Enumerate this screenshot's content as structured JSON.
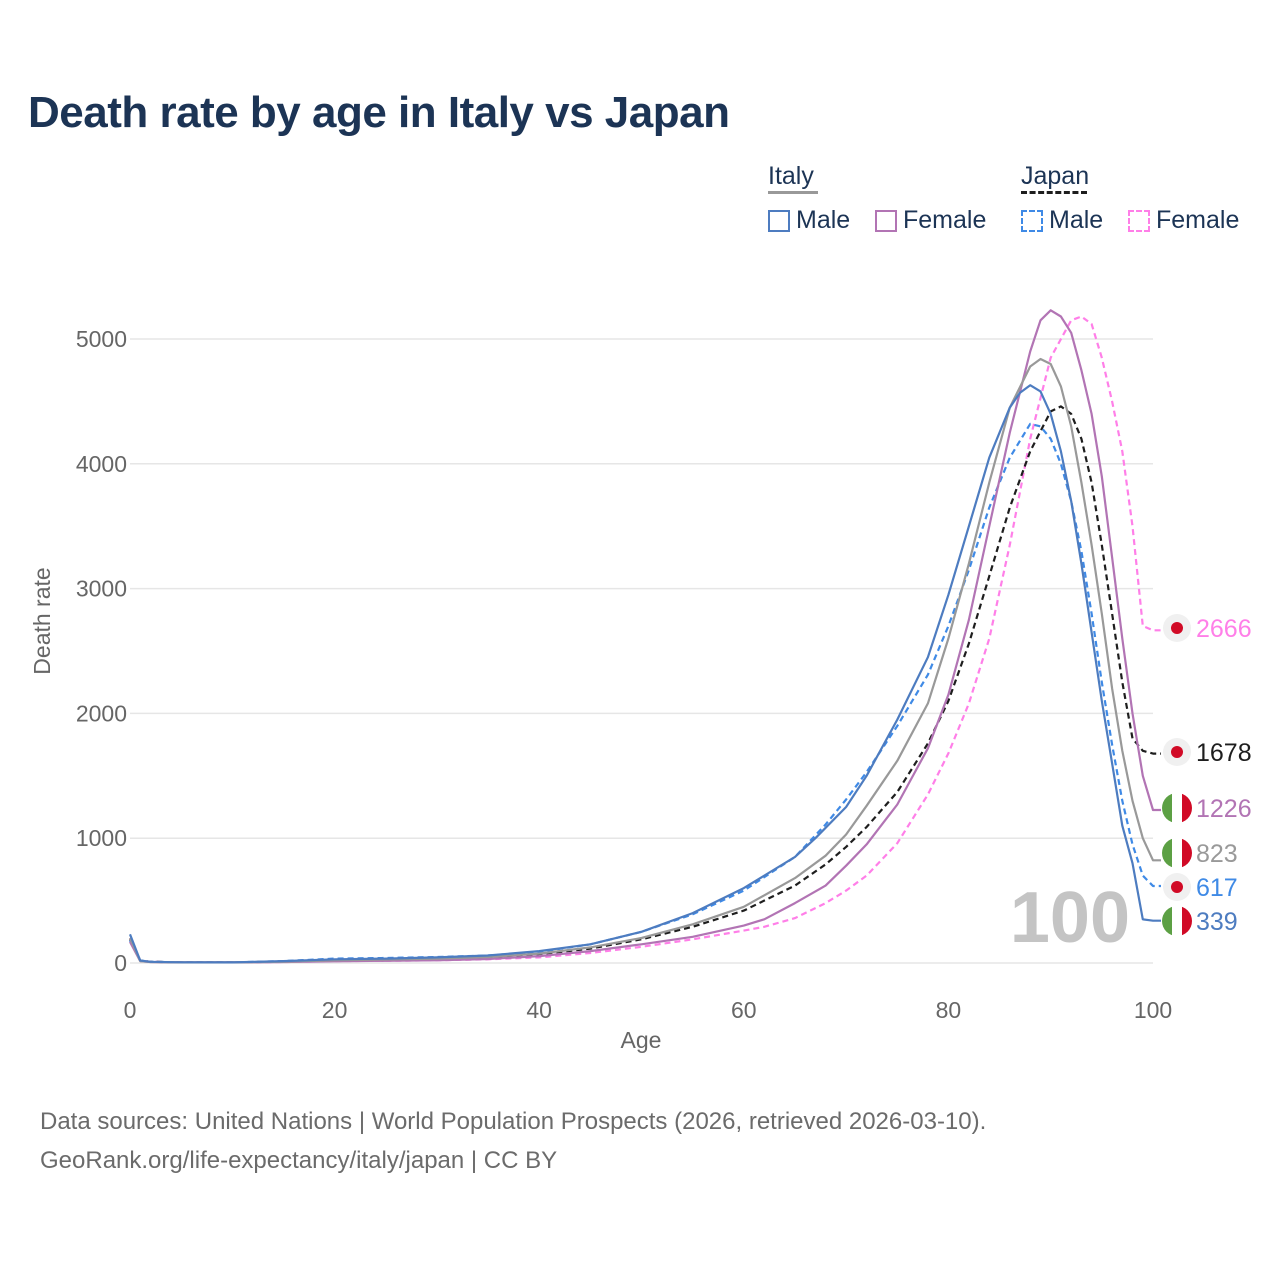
{
  "title": "Death rate by age in Italy vs Japan",
  "legend": {
    "groups": [
      {
        "name": "Italy",
        "style": "solid",
        "items": [
          {
            "label": "Male",
            "color": "#4d7cc0"
          },
          {
            "label": "Female",
            "color": "#b274b4"
          }
        ]
      },
      {
        "name": "Japan",
        "style": "dashed",
        "items": [
          {
            "label": "Male",
            "color": "#3f8ae6"
          },
          {
            "label": "Female",
            "color": "#ff7fe8"
          }
        ]
      }
    ]
  },
  "year_watermark": "100",
  "footer": {
    "line1": "Data sources: United Nations | World Population Prospects (2026, retrieved 2026-03-10).",
    "line2": "GeoRank.org/life-expectancy/italy/japan | CC BY"
  },
  "chart_data": {
    "type": "line",
    "title": "Death rate by age in Italy vs Japan",
    "xlabel": "Age",
    "ylabel": "Death rate",
    "xlim": [
      0,
      100
    ],
    "ylim": [
      0,
      5000
    ],
    "xticks": [
      0,
      20,
      40,
      60,
      80,
      100
    ],
    "yticks": [
      0,
      1000,
      2000,
      3000,
      4000,
      5000
    ],
    "grid": true,
    "series": [
      {
        "name": "Japan Female",
        "country": "Japan",
        "sex": "Female",
        "color": "#ff7fe8",
        "dash": true,
        "end_value": "2666",
        "x": [
          0,
          1,
          2,
          5,
          10,
          15,
          20,
          25,
          30,
          35,
          40,
          45,
          50,
          55,
          60,
          62,
          65,
          68,
          70,
          72,
          75,
          78,
          80,
          82,
          84,
          86,
          88,
          90,
          92,
          93,
          94,
          95,
          96,
          97,
          98,
          99,
          100
        ],
        "y": [
          200,
          20,
          10,
          6,
          5,
          8,
          15,
          18,
          22,
          30,
          45,
          80,
          130,
          190,
          260,
          290,
          360,
          480,
          580,
          700,
          960,
          1350,
          1680,
          2080,
          2600,
          3350,
          4200,
          4850,
          5150,
          5180,
          5120,
          4850,
          4500,
          4100,
          3500,
          2700,
          2666
        ]
      },
      {
        "name": "Japan Total",
        "country": "Japan",
        "sex": "Total",
        "color": "#1e1e1e",
        "dash": true,
        "end_value": "1678",
        "x": [
          0,
          1,
          2,
          5,
          10,
          15,
          20,
          25,
          30,
          35,
          40,
          45,
          50,
          55,
          60,
          65,
          68,
          70,
          72,
          75,
          78,
          80,
          82,
          84,
          86,
          88,
          90,
          91,
          92,
          93,
          94,
          95,
          96,
          97,
          98,
          99,
          100
        ],
        "y": [
          190,
          20,
          10,
          6,
          5,
          12,
          25,
          30,
          35,
          45,
          70,
          115,
          190,
          290,
          420,
          620,
          790,
          930,
          1090,
          1370,
          1760,
          2100,
          2560,
          3100,
          3650,
          4100,
          4420,
          4460,
          4400,
          4200,
          3850,
          3350,
          2800,
          2250,
          1800,
          1700,
          1678
        ]
      },
      {
        "name": "Japan Male",
        "country": "Japan",
        "sex": "Male",
        "color": "#3f8ae6",
        "dash": true,
        "end_value": "617",
        "x": [
          0,
          1,
          2,
          5,
          10,
          15,
          20,
          25,
          30,
          35,
          40,
          45,
          50,
          55,
          60,
          65,
          68,
          70,
          72,
          75,
          78,
          80,
          82,
          84,
          86,
          88,
          89,
          90,
          91,
          92,
          93,
          94,
          95,
          96,
          97,
          98,
          99,
          100
        ],
        "y": [
          180,
          20,
          10,
          6,
          5,
          15,
          35,
          40,
          48,
          60,
          90,
          150,
          250,
          390,
          580,
          850,
          1110,
          1310,
          1530,
          1900,
          2310,
          2700,
          3150,
          3650,
          4050,
          4320,
          4300,
          4200,
          4000,
          3700,
          3300,
          2800,
          2250,
          1750,
          1300,
          950,
          700,
          617
        ]
      },
      {
        "name": "Italy Female",
        "country": "Italy",
        "sex": "Female",
        "color": "#b274b4",
        "dash": false,
        "end_value": "1226",
        "x": [
          0,
          1,
          2,
          5,
          10,
          15,
          20,
          25,
          30,
          35,
          40,
          45,
          50,
          55,
          60,
          62,
          65,
          68,
          70,
          72,
          75,
          78,
          80,
          82,
          84,
          86,
          88,
          89,
          90,
          91,
          92,
          93,
          94,
          95,
          96,
          97,
          98,
          99,
          100
        ],
        "y": [
          170,
          15,
          8,
          5,
          5,
          8,
          14,
          18,
          22,
          32,
          55,
          95,
          150,
          210,
          300,
          350,
          480,
          620,
          780,
          950,
          1270,
          1720,
          2150,
          2750,
          3500,
          4250,
          4900,
          5150,
          5230,
          5180,
          5050,
          4750,
          4400,
          3900,
          3250,
          2600,
          2000,
          1500,
          1226
        ]
      },
      {
        "name": "Italy Total",
        "country": "Italy",
        "sex": "Total",
        "color": "#999999",
        "dash": false,
        "end_value": "823",
        "x": [
          0,
          1,
          2,
          5,
          10,
          15,
          20,
          25,
          30,
          35,
          40,
          45,
          50,
          55,
          60,
          65,
          68,
          70,
          72,
          75,
          78,
          80,
          82,
          84,
          86,
          88,
          89,
          90,
          91,
          92,
          93,
          94,
          95,
          96,
          97,
          98,
          99,
          100
        ],
        "y": [
          200,
          15,
          8,
          5,
          5,
          10,
          22,
          28,
          35,
          48,
          75,
          125,
          200,
          310,
          450,
          680,
          860,
          1030,
          1260,
          1620,
          2080,
          2600,
          3200,
          3850,
          4450,
          4780,
          4840,
          4800,
          4620,
          4300,
          3850,
          3350,
          2800,
          2200,
          1700,
          1300,
          1000,
          823
        ]
      },
      {
        "name": "Italy Male",
        "country": "Italy",
        "sex": "Male",
        "color": "#4d7cc0",
        "dash": false,
        "end_value": "339",
        "x": [
          0,
          1,
          2,
          5,
          10,
          15,
          20,
          25,
          30,
          35,
          40,
          45,
          50,
          55,
          60,
          65,
          67,
          70,
          72,
          75,
          78,
          80,
          82,
          84,
          86,
          87,
          88,
          89,
          90,
          91,
          92,
          93,
          94,
          95,
          96,
          97,
          98,
          99,
          100
        ],
        "y": [
          230,
          20,
          10,
          6,
          5,
          15,
          30,
          35,
          45,
          60,
          95,
          150,
          250,
          400,
          600,
          850,
          1000,
          1250,
          1500,
          1950,
          2450,
          2950,
          3500,
          4050,
          4450,
          4570,
          4630,
          4580,
          4400,
          4100,
          3700,
          3200,
          2650,
          2100,
          1600,
          1100,
          800,
          350,
          339
        ]
      }
    ]
  }
}
